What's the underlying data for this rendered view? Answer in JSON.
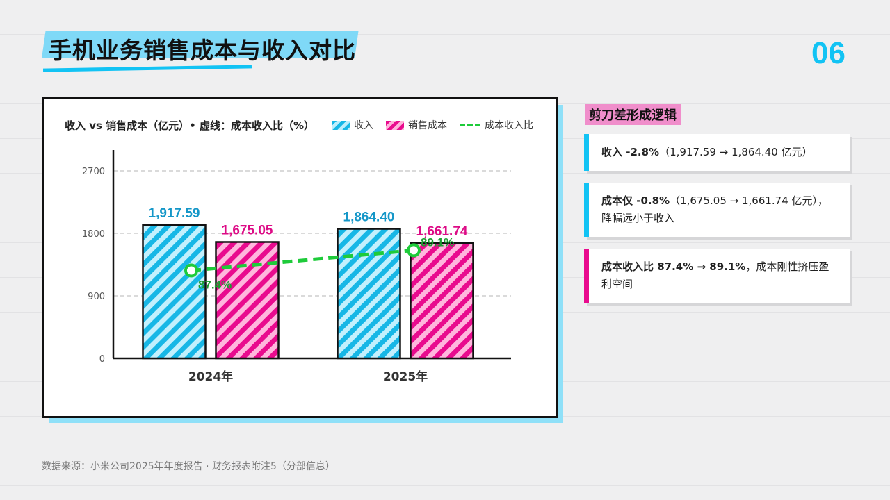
{
  "header": {
    "title": "手机业务销售成本与收入对比",
    "page_number": "06"
  },
  "chart_card": {
    "chart_title": "收入 vs 销售成本（亿元）• 虚线：成本收入比（%）",
    "legend": {
      "revenue": "收入",
      "cost": "销售成本",
      "ratio": "成本收入比"
    }
  },
  "chart_data": {
    "type": "bar",
    "title": "收入 vs 销售成本（亿元）• 虚线：成本收入比（%）",
    "categories": [
      "2024年",
      "2025年"
    ],
    "series": [
      {
        "name": "收入",
        "values": [
          1917.59,
          1864.4
        ],
        "labels": [
          "1,917.59",
          "1,864.40"
        ]
      },
      {
        "name": "销售成本",
        "values": [
          1675.05,
          1661.74
        ],
        "labels": [
          "1,675.05",
          "1,661.74"
        ]
      }
    ],
    "line_series": {
      "name": "成本收入比",
      "values": [
        87.4,
        89.1
      ],
      "labels": [
        "87.4%",
        "89.1%"
      ]
    },
    "y_ticks": [
      "0",
      "900",
      "1800",
      "2700"
    ],
    "ylim": [
      0,
      2700
    ],
    "grid": true,
    "legend_position": "top-right",
    "colors": {
      "revenue": "#17b7e6",
      "cost": "#e90b8e",
      "ratio": "#1ecb3a"
    }
  },
  "side": {
    "heading": "剪刀差形成逻辑",
    "notes": [
      {
        "bold": "收入 -2.8%",
        "text": "（1,917.59 → 1,864.40 亿元）"
      },
      {
        "bold": "成本仅 -0.8%",
        "text": "（1,675.05 → 1,661.74 亿元），降幅远小于收入"
      },
      {
        "bold": "成本收入比 87.4% → 89.1%",
        "text": "，成本刚性挤压盈利空间"
      }
    ]
  },
  "footer": {
    "source": "数据来源：小米公司2025年年度报告 · 财务报表附注5（分部信息）"
  }
}
